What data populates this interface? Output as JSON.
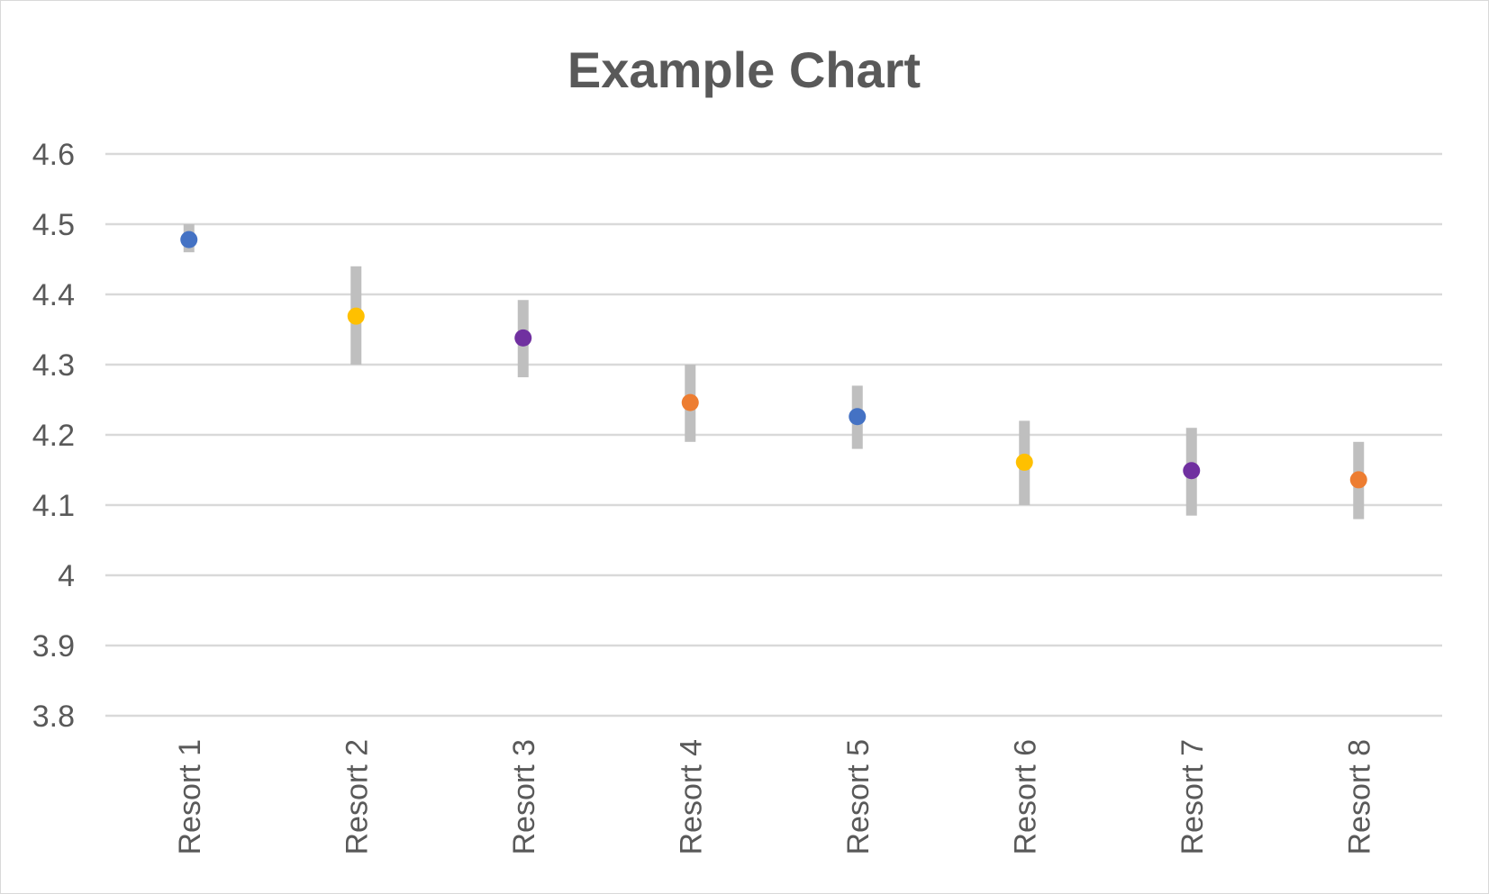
{
  "chart_data": {
    "type": "scatter",
    "title": "Example Chart",
    "xlabel": "",
    "ylabel": "",
    "ylim": [
      3.8,
      4.6
    ],
    "yticks": [
      "4.6",
      "4.5",
      "4.4",
      "4.3",
      "4.2",
      "4.1",
      "4",
      "3.9",
      "3.8"
    ],
    "grid": true,
    "legend": "none",
    "categories": [
      "Resort 1",
      "Resort 2",
      "Resort 3",
      "Resort 4",
      "Resort 5",
      "Resort 6",
      "Resort 7",
      "Resort 8"
    ],
    "series": [
      {
        "values": [
          4.478,
          4.369,
          4.338,
          4.246,
          4.226,
          4.161,
          4.149,
          4.136
        ],
        "error_low": [
          4.46,
          4.3,
          4.282,
          4.19,
          4.18,
          4.1,
          4.085,
          4.08
        ],
        "error_high": [
          4.5,
          4.44,
          4.392,
          4.3,
          4.27,
          4.22,
          4.21,
          4.19
        ],
        "point_colors": [
          "#4472c4",
          "#ffc000",
          "#7030a0",
          "#ed7d31",
          "#4472c4",
          "#ffc000",
          "#7030a0",
          "#ed7d31"
        ]
      }
    ],
    "colors": {
      "error_bar": "#bfbfbf",
      "gridline": "#d9d9d9",
      "text": "#595959"
    }
  }
}
